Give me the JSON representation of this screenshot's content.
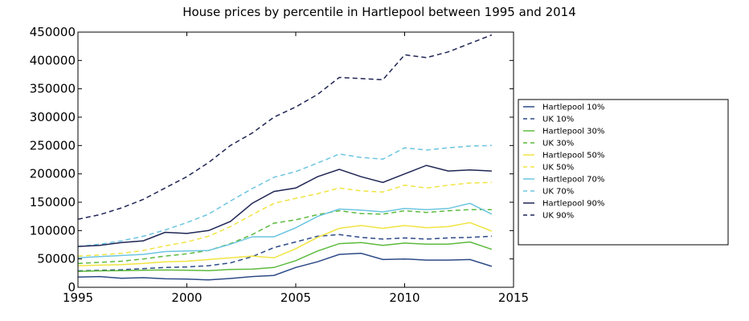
{
  "chart_data": {
    "type": "line",
    "title": "House prices by percentile in Hartlepool between 1995 and 2014",
    "xlabel": "",
    "ylabel": "",
    "xlim": [
      1995,
      2015
    ],
    "ylim": [
      0,
      450000
    ],
    "xticks": [
      1995,
      2000,
      2005,
      2010,
      2015
    ],
    "yticks": [
      0,
      50000,
      100000,
      150000,
      200000,
      250000,
      300000,
      350000,
      400000,
      450000
    ],
    "grid": false,
    "legend_position": "right, outside plot",
    "x": [
      1995,
      1996,
      1997,
      1998,
      1999,
      2000,
      2001,
      2002,
      2003,
      2004,
      2005,
      2006,
      2007,
      2008,
      2009,
      2010,
      2011,
      2012,
      2013,
      2014
    ],
    "series": [
      {
        "name": "Hartlepool 10%",
        "color": "#2c4a87",
        "dash": "solid",
        "values": [
          18000,
          19000,
          16000,
          17000,
          15000,
          14500,
          13000,
          15500,
          19000,
          21000,
          35000,
          45000,
          58000,
          60000,
          49000,
          50000,
          48000,
          48000,
          49000,
          37000
        ]
      },
      {
        "name": "UK 10%",
        "color": "#2c4a87",
        "dash": "dashed",
        "values": [
          29000,
          30000,
          31000,
          33000,
          35000,
          36000,
          38000,
          43000,
          54000,
          70000,
          80000,
          90000,
          93000,
          88000,
          85000,
          87000,
          85000,
          87000,
          88000,
          90000
        ]
      },
      {
        "name": "Hartlepool 30%",
        "color": "#5cba3c",
        "dash": "solid",
        "values": [
          28000,
          29000,
          29500,
          30000,
          30500,
          30000,
          29500,
          31500,
          32000,
          35000,
          47000,
          64000,
          77000,
          79000,
          74000,
          78000,
          76000,
          76000,
          80000,
          67000
        ]
      },
      {
        "name": "UK 30%",
        "color": "#5cba3c",
        "dash": "dashed",
        "values": [
          42000,
          44000,
          46000,
          50000,
          55000,
          59000,
          65000,
          77000,
          93000,
          113000,
          119000,
          128000,
          135000,
          130000,
          129000,
          135000,
          132000,
          135000,
          137000,
          137000
        ]
      },
      {
        "name": "Hartlepool 50%",
        "color": "#f0e442",
        "dash": "solid",
        "values": [
          38000,
          39000,
          40000,
          42000,
          45000,
          46000,
          49000,
          52000,
          55000,
          52000,
          68000,
          88000,
          104000,
          109000,
          104000,
          109000,
          105000,
          107000,
          114000,
          99000
        ]
      },
      {
        "name": "UK 50%",
        "color": "#f0e442",
        "dash": "dashed",
        "values": [
          55000,
          57000,
          60000,
          65000,
          73000,
          80000,
          90000,
          107000,
          128000,
          148000,
          157000,
          165000,
          175000,
          170000,
          168000,
          180000,
          175000,
          180000,
          184000,
          185000
        ]
      },
      {
        "name": "Hartlepool 70%",
        "color": "#6cc5e0",
        "dash": "solid",
        "values": [
          52000,
          54000,
          56000,
          58000,
          63000,
          64000,
          65000,
          76000,
          89000,
          89000,
          105000,
          125000,
          138000,
          136000,
          133000,
          139000,
          137000,
          139000,
          148000,
          129000
        ]
      },
      {
        "name": "UK 70%",
        "color": "#6cc5e0",
        "dash": "dashed",
        "values": [
          72000,
          76000,
          82000,
          90000,
          101000,
          114000,
          129000,
          152000,
          174000,
          194000,
          204000,
          219000,
          235000,
          229000,
          226000,
          246000,
          242000,
          246000,
          249000,
          250000
        ]
      },
      {
        "name": "Hartlepool 90%",
        "color": "#1f2554",
        "dash": "solid",
        "values": [
          72000,
          74000,
          79000,
          82000,
          97000,
          95000,
          100000,
          116000,
          148000,
          169000,
          175000,
          195000,
          208000,
          195000,
          185000,
          200000,
          215000,
          205000,
          207000,
          205000
        ]
      },
      {
        "name": "UK 90%",
        "color": "#1f2554",
        "dash": "dashed",
        "values": [
          120000,
          128000,
          140000,
          155000,
          175000,
          195000,
          220000,
          250000,
          272000,
          300000,
          318000,
          340000,
          370000,
          368000,
          366000,
          410000,
          405000,
          415000,
          430000,
          445000
        ]
      }
    ]
  }
}
